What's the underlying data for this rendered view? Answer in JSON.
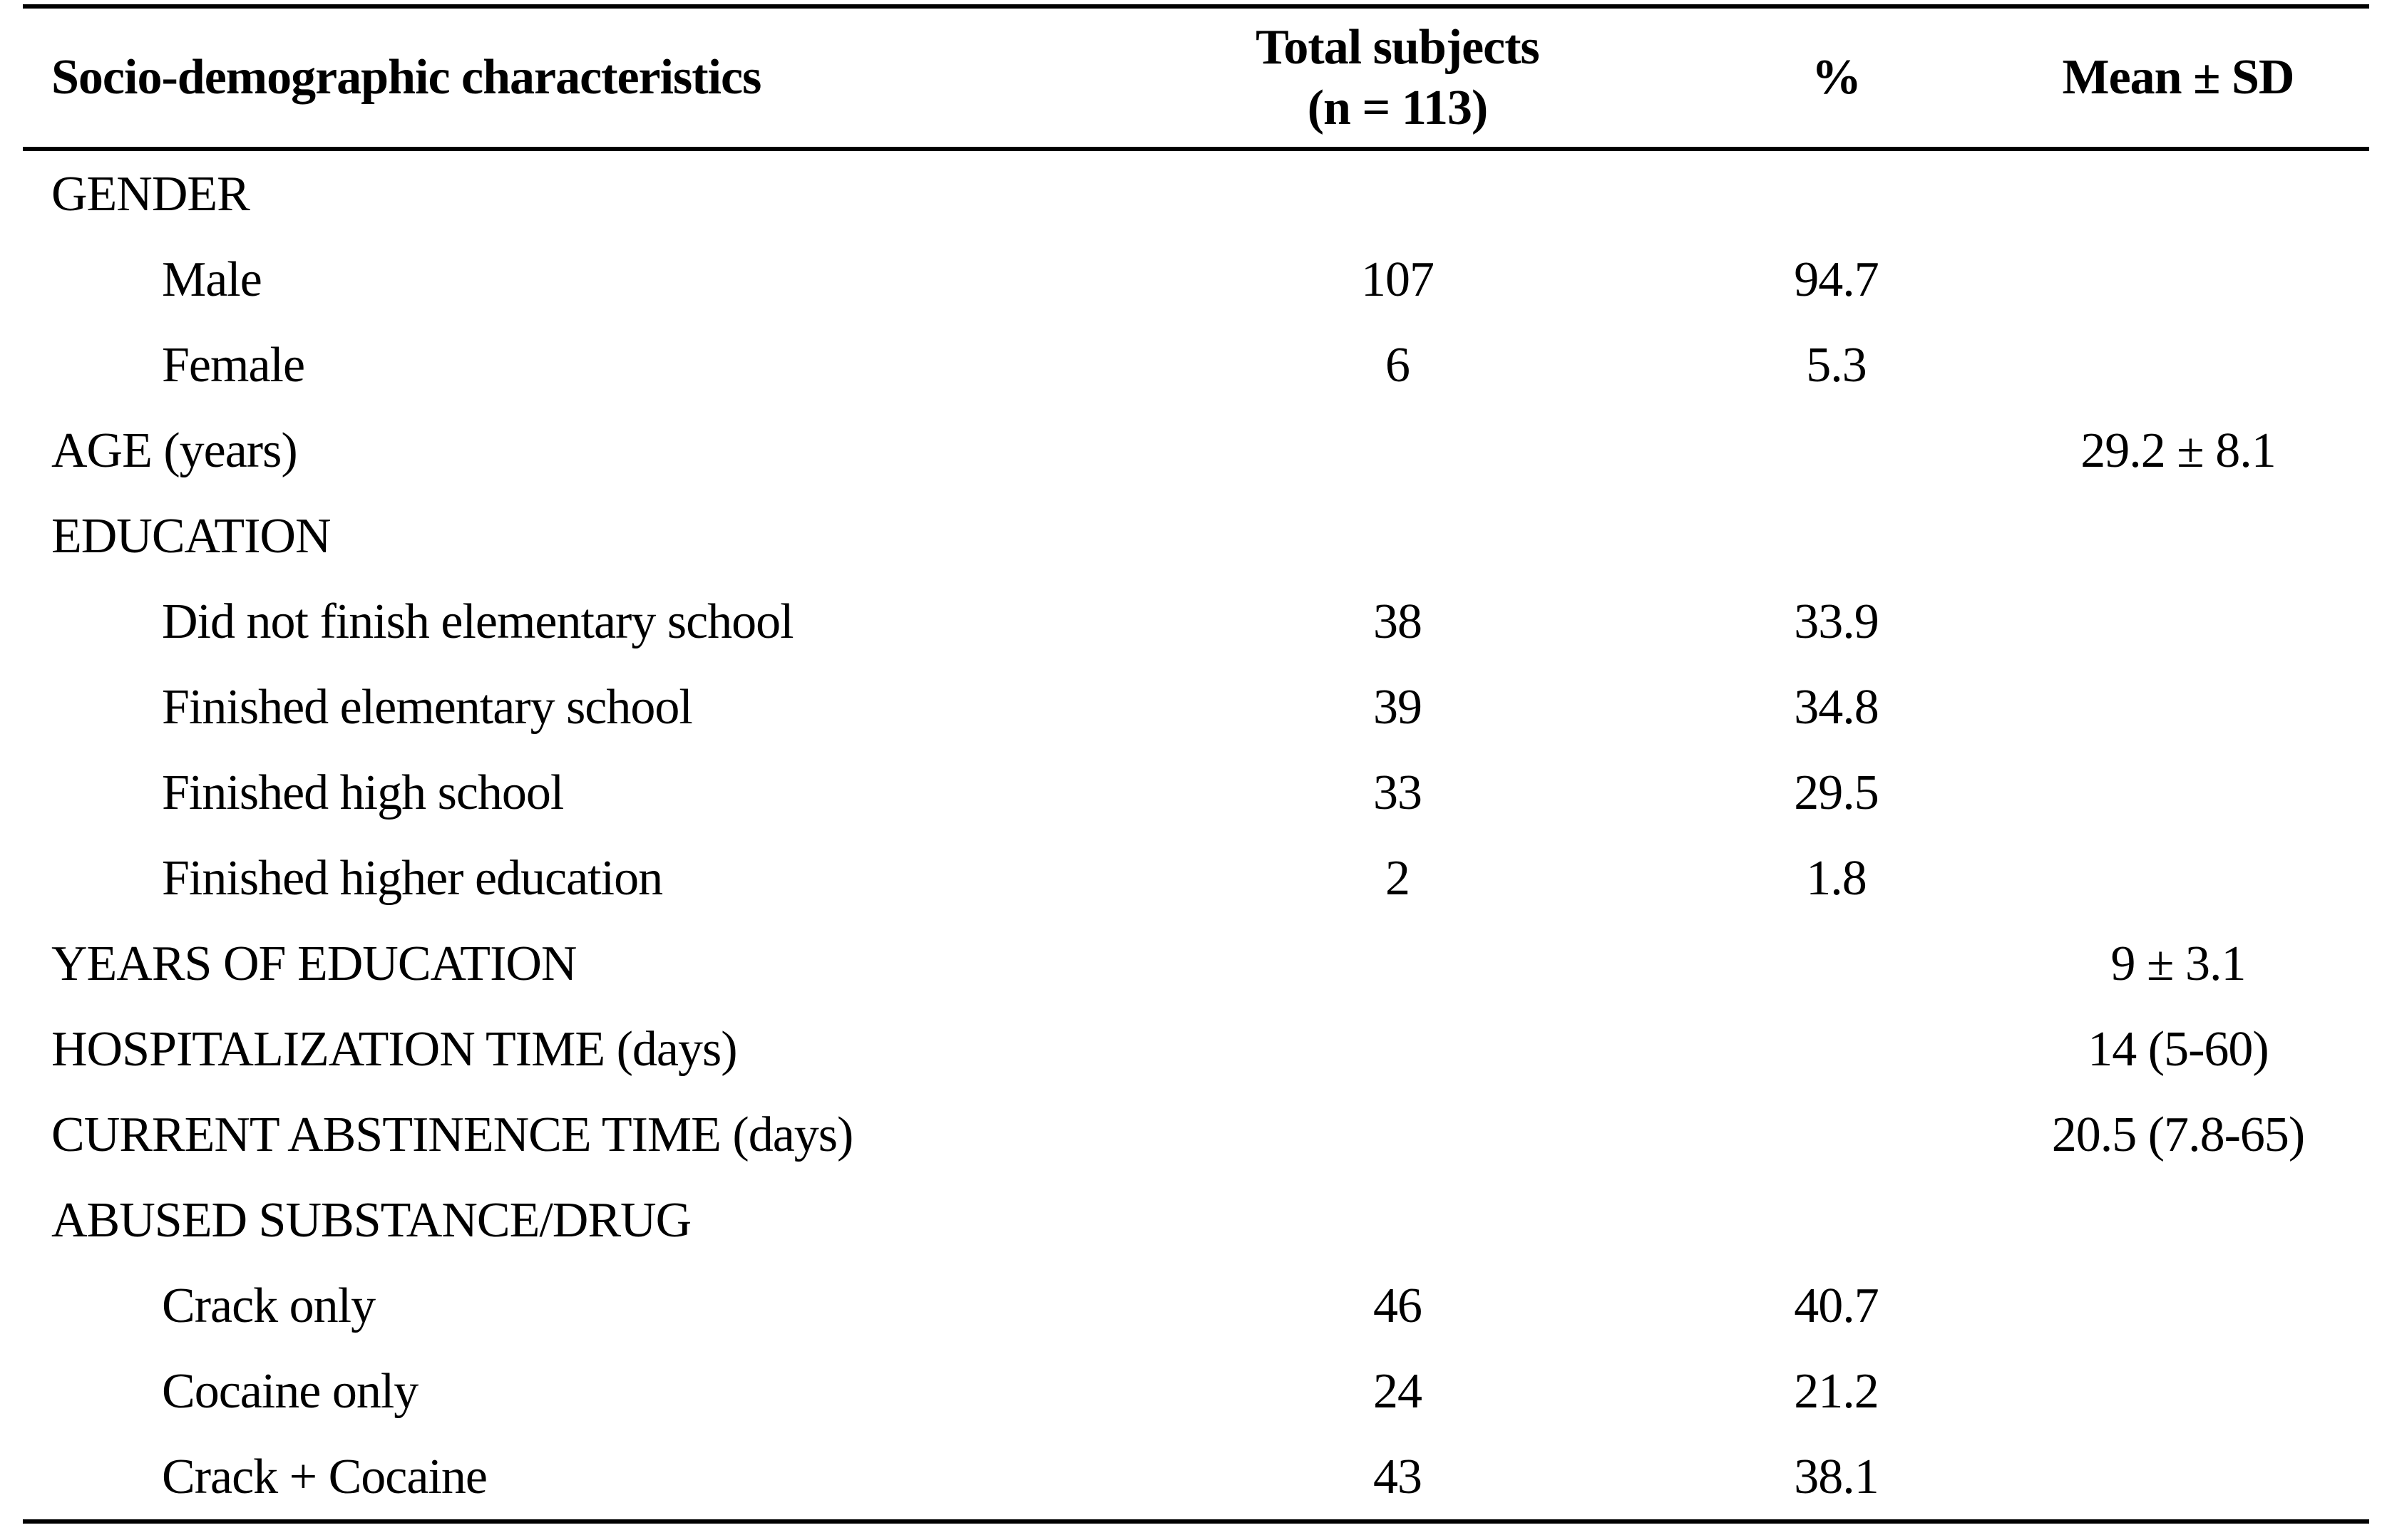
{
  "table": {
    "header": {
      "col1": "Socio-demographic characteristics",
      "col2_line1": "Total subjects",
      "col2_line2": "(n = 113)",
      "col3": "%",
      "col4": "Mean ± SD"
    },
    "rows": [
      {
        "label": "GENDER",
        "n": "",
        "pct": "",
        "mean": ""
      },
      {
        "label": "Male",
        "n": "107",
        "pct": "94.7",
        "mean": ""
      },
      {
        "label": "Female",
        "n": "6",
        "pct": "5.3",
        "mean": ""
      },
      {
        "label": "AGE (years)",
        "n": "",
        "pct": "",
        "mean": "29.2 ± 8.1"
      },
      {
        "label": "EDUCATION",
        "n": "",
        "pct": "",
        "mean": ""
      },
      {
        "label": "Did not finish elementary school",
        "n": "38",
        "pct": "33.9",
        "mean": ""
      },
      {
        "label": "Finished elementary school",
        "n": "39",
        "pct": "34.8",
        "mean": ""
      },
      {
        "label": "Finished high school",
        "n": "33",
        "pct": "29.5",
        "mean": ""
      },
      {
        "label": "Finished higher education",
        "n": "2",
        "pct": "1.8",
        "mean": ""
      },
      {
        "label": "YEARS OF EDUCATION",
        "n": "",
        "pct": "",
        "mean": "9 ± 3.1"
      },
      {
        "label": "HOSPITALIZATION TIME (days)",
        "n": "",
        "pct": "",
        "mean": "14 (5-60)"
      },
      {
        "label": "CURRENT ABSTINENCE TIME (days)",
        "n": "",
        "pct": "",
        "mean": "20.5 (7.8-65)"
      },
      {
        "label": "ABUSED SUBSTANCE/DRUG",
        "n": "",
        "pct": "",
        "mean": ""
      },
      {
        "label": "Crack only",
        "n": "46",
        "pct": "40.7",
        "mean": ""
      },
      {
        "label": "Cocaine only",
        "n": "24",
        "pct": "21.2",
        "mean": ""
      },
      {
        "label": "Crack + Cocaine",
        "n": "43",
        "pct": "38.1",
        "mean": ""
      }
    ]
  }
}
